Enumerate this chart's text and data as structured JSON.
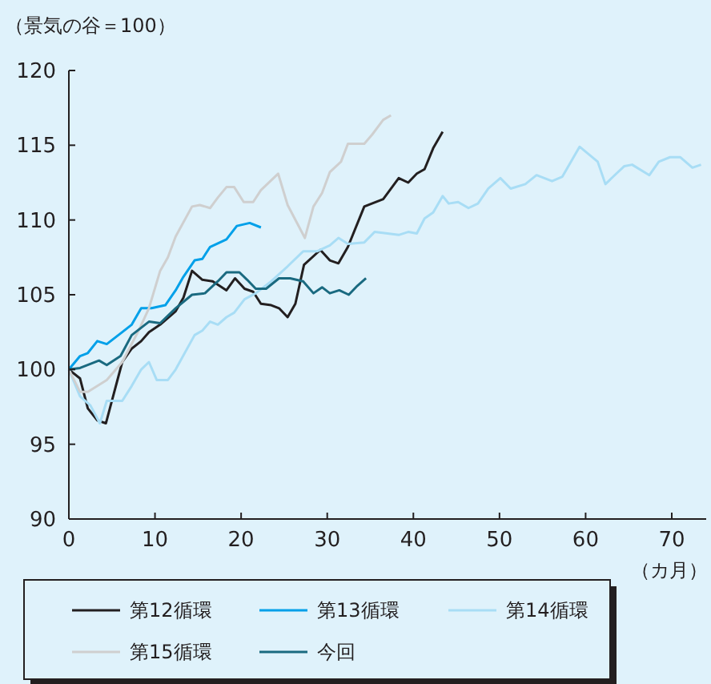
{
  "chart_data": {
    "type": "line",
    "ylabel": "（景気の谷＝100）",
    "xlabel": "（カ月）",
    "xlim": [
      0,
      74
    ],
    "xticks": [
      0,
      10,
      20,
      30,
      40,
      50,
      60,
      70
    ],
    "ylim": [
      90,
      120
    ],
    "yticks": [
      90,
      95,
      100,
      105,
      110,
      115,
      120
    ],
    "grid": false,
    "legend": "bottom",
    "marker": "none",
    "line_style": "solid",
    "series": [
      {
        "name": "第12循環",
        "color": "#231f20",
        "x": [
          0,
          1.3,
          2.2,
          3.3,
          4.3,
          6.2,
          7.3,
          8.4,
          9.3,
          10.6,
          12.4,
          13.3,
          14.3,
          15.5,
          16.7,
          18.3,
          19.3,
          20.4,
          21.4,
          22.3,
          23.5,
          24.4,
          25.4,
          26.3,
          27.3,
          29.2,
          30.3,
          31.3,
          32.4,
          34.3,
          36.5,
          38.3,
          39.4,
          40.4,
          41.3,
          42.3,
          43.4
        ],
        "values": [
          100,
          99.4,
          97.4,
          96.6,
          96.4,
          100.5,
          101.4,
          101.9,
          102.5,
          103,
          103.9,
          104.8,
          106.6,
          106,
          105.9,
          105.3,
          106.1,
          105.4,
          105.2,
          104.4,
          104.3,
          104.1,
          103.5,
          104.4,
          107,
          108,
          107.3,
          107.1,
          108.2,
          110.9,
          111.4,
          112.8,
          112.5,
          113.1,
          113.4,
          114.8,
          115.9
        ]
      },
      {
        "name": "第13循環",
        "color": "#00a0e9",
        "x": [
          0,
          1.3,
          2.2,
          3.3,
          4.4,
          6.2,
          7.3,
          8.4,
          9.6,
          11.2,
          12.4,
          13.3,
          14.6,
          15.5,
          16.4,
          18.3,
          19.5,
          21,
          22.3
        ],
        "values": [
          100,
          100.9,
          101.1,
          101.9,
          101.7,
          102.5,
          103,
          104.1,
          104.1,
          104.3,
          105.3,
          106.2,
          107.3,
          107.4,
          108.2,
          108.7,
          109.6,
          109.8,
          109.5
        ]
      },
      {
        "name": "第14循環",
        "color": "#a8ddf5",
        "x": [
          0,
          1.3,
          2.5,
          3.6,
          4.4,
          6.2,
          7.3,
          8.4,
          9.3,
          10.2,
          11.5,
          12.4,
          14.6,
          15.5,
          16.4,
          17.3,
          18.3,
          19.2,
          20.4,
          21.7,
          23.5,
          25.4,
          27.2,
          28.8,
          30.3,
          31.3,
          32.4,
          34.3,
          35.5,
          38.3,
          39.4,
          40.4,
          41.3,
          42.3,
          43.4,
          44.1,
          45.2,
          46.4,
          47.5,
          48.7,
          50.1,
          51.3,
          53,
          54.3,
          56.1,
          57.3,
          59.3,
          61.4,
          62.3,
          63.2,
          64.5,
          65.4,
          67.4,
          68.5,
          69.8,
          71,
          72.4,
          73.4
        ],
        "values": [
          100,
          98.2,
          97.6,
          96.4,
          97.9,
          97.9,
          98.9,
          100,
          100.5,
          99.3,
          99.3,
          100,
          102.3,
          102.6,
          103.2,
          103,
          103.5,
          103.8,
          104.7,
          105.1,
          105.9,
          106.9,
          107.9,
          107.9,
          108.3,
          108.8,
          108.4,
          108.5,
          109.2,
          109,
          109.2,
          109.1,
          110.1,
          110.5,
          111.6,
          111.1,
          111.2,
          110.8,
          111.1,
          112.1,
          112.8,
          112.1,
          112.4,
          113,
          112.6,
          112.9,
          114.9,
          113.9,
          112.4,
          112.9,
          113.6,
          113.7,
          113,
          113.9,
          114.2,
          114.2,
          113.5,
          113.7
        ]
      },
      {
        "name": "第15循環",
        "color": "#cfcfcf",
        "x": [
          0,
          1.3,
          2.2,
          4.4,
          6.2,
          8.1,
          9.3,
          10.6,
          11.5,
          12.4,
          14.3,
          15.2,
          16.4,
          17.3,
          18.3,
          19.2,
          20.3,
          21.4,
          22.3,
          24.3,
          25.4,
          27.4,
          28.4,
          29.4,
          30.3,
          31.6,
          32.4,
          34.3,
          35.2,
          36.5,
          37.4
        ],
        "values": [
          100,
          98.5,
          98.5,
          99.3,
          100.5,
          102.6,
          104.1,
          106.6,
          107.5,
          108.9,
          110.9,
          111,
          110.8,
          111.5,
          112.2,
          112.2,
          111.2,
          111.2,
          112,
          113.1,
          111,
          108.8,
          110.9,
          111.8,
          113.2,
          113.9,
          115.1,
          115.1,
          115.7,
          116.7,
          117
        ]
      },
      {
        "name": "今回",
        "color": "#1a6a80",
        "x": [
          0,
          1.3,
          3.5,
          4.4,
          6,
          7.3,
          9.3,
          10.6,
          12.4,
          14.3,
          15.8,
          17.3,
          18.3,
          19.8,
          20.7,
          21.7,
          22.9,
          24.4,
          25.7,
          27.2,
          28.4,
          29.4,
          30.3,
          31.4,
          32.5,
          33.5,
          34.5
        ],
        "values": [
          100,
          100.1,
          100.6,
          100.3,
          100.9,
          102.3,
          103.2,
          103.1,
          104.1,
          105,
          105.1,
          105.9,
          106.5,
          106.5,
          106,
          105.4,
          105.4,
          106.1,
          106.1,
          105.9,
          105.1,
          105.5,
          105.1,
          105.3,
          105,
          105.6,
          106.1
        ]
      }
    ]
  }
}
